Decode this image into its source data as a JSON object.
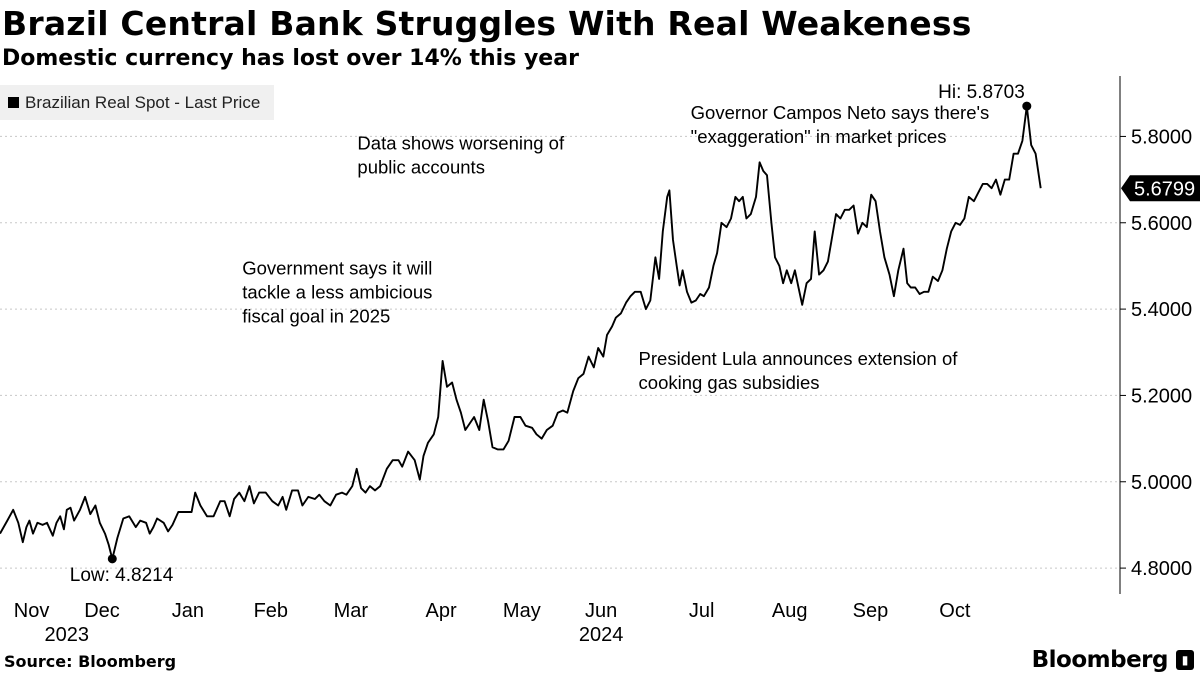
{
  "title": "Brazil Central Bank Struggles With Real Weakeness",
  "subtitle": "Domestic currency has lost over 14% this year",
  "legend_label": "Brazilian Real Spot - Last Price",
  "source": "Source: Bloomberg",
  "brand": "Bloomberg",
  "chart_data": {
    "type": "line",
    "series": [
      {
        "name": "Brazilian Real Spot - Last Price",
        "points": [
          [
            0.0,
            4.88
          ],
          [
            1.0,
            4.91
          ],
          [
            1.8,
            4.935
          ],
          [
            2.5,
            4.905
          ],
          [
            3.1,
            4.86
          ],
          [
            3.6,
            4.895
          ],
          [
            4.0,
            4.91
          ],
          [
            4.5,
            4.88
          ],
          [
            5.1,
            4.905
          ],
          [
            5.8,
            4.9
          ],
          [
            6.4,
            4.905
          ],
          [
            7.2,
            4.875
          ],
          [
            7.7,
            4.905
          ],
          [
            8.2,
            4.92
          ],
          [
            8.7,
            4.89
          ],
          [
            9.1,
            4.935
          ],
          [
            9.6,
            4.94
          ],
          [
            10.1,
            4.91
          ],
          [
            10.9,
            4.935
          ],
          [
            11.6,
            4.965
          ],
          [
            12.3,
            4.925
          ],
          [
            13.0,
            4.945
          ],
          [
            13.6,
            4.905
          ],
          [
            14.3,
            4.88
          ],
          [
            14.8,
            4.855
          ],
          [
            15.3,
            4.821
          ],
          [
            16.0,
            4.87
          ],
          [
            16.8,
            4.915
          ],
          [
            17.6,
            4.92
          ],
          [
            18.5,
            4.895
          ],
          [
            19.1,
            4.91
          ],
          [
            19.9,
            4.905
          ],
          [
            20.4,
            4.88
          ],
          [
            20.9,
            4.895
          ],
          [
            21.4,
            4.915
          ],
          [
            22.3,
            4.905
          ],
          [
            22.9,
            4.885
          ],
          [
            23.5,
            4.9
          ],
          [
            24.3,
            4.93
          ],
          [
            25.2,
            4.93
          ],
          [
            26.1,
            4.93
          ],
          [
            26.6,
            4.975
          ],
          [
            27.3,
            4.945
          ],
          [
            28.2,
            4.92
          ],
          [
            29.1,
            4.92
          ],
          [
            30.0,
            4.955
          ],
          [
            30.6,
            4.955
          ],
          [
            31.3,
            4.92
          ],
          [
            31.9,
            4.96
          ],
          [
            32.6,
            4.975
          ],
          [
            33.3,
            4.955
          ],
          [
            34.0,
            4.99
          ],
          [
            34.6,
            4.95
          ],
          [
            35.3,
            4.975
          ],
          [
            36.2,
            4.975
          ],
          [
            37.1,
            4.955
          ],
          [
            37.9,
            4.945
          ],
          [
            38.5,
            4.965
          ],
          [
            39.0,
            4.935
          ],
          [
            39.8,
            4.98
          ],
          [
            40.6,
            4.98
          ],
          [
            41.2,
            4.945
          ],
          [
            42.0,
            4.965
          ],
          [
            42.9,
            4.96
          ],
          [
            43.5,
            4.97
          ],
          [
            44.2,
            4.955
          ],
          [
            45.0,
            4.945
          ],
          [
            45.8,
            4.97
          ],
          [
            46.6,
            4.975
          ],
          [
            47.2,
            4.97
          ],
          [
            48.0,
            4.99
          ],
          [
            48.6,
            5.03
          ],
          [
            49.2,
            4.985
          ],
          [
            49.8,
            4.975
          ],
          [
            50.4,
            4.99
          ],
          [
            51.1,
            4.98
          ],
          [
            51.8,
            4.99
          ],
          [
            52.7,
            5.03
          ],
          [
            53.5,
            5.05
          ],
          [
            54.3,
            5.05
          ],
          [
            54.8,
            5.035
          ],
          [
            55.6,
            5.07
          ],
          [
            56.5,
            5.05
          ],
          [
            57.2,
            5.005
          ],
          [
            57.7,
            5.06
          ],
          [
            58.3,
            5.09
          ],
          [
            59.1,
            5.11
          ],
          [
            59.7,
            5.15
          ],
          [
            60.3,
            5.28
          ],
          [
            60.9,
            5.22
          ],
          [
            61.6,
            5.23
          ],
          [
            62.2,
            5.19
          ],
          [
            62.8,
            5.16
          ],
          [
            63.4,
            5.12
          ],
          [
            64.0,
            5.135
          ],
          [
            64.6,
            5.15
          ],
          [
            65.3,
            5.12
          ],
          [
            65.9,
            5.19
          ],
          [
            66.5,
            5.14
          ],
          [
            67.1,
            5.08
          ],
          [
            67.8,
            5.075
          ],
          [
            68.6,
            5.075
          ],
          [
            69.3,
            5.095
          ],
          [
            70.1,
            5.15
          ],
          [
            70.9,
            5.15
          ],
          [
            71.6,
            5.13
          ],
          [
            72.5,
            5.125
          ],
          [
            73.1,
            5.11
          ],
          [
            73.8,
            5.1
          ],
          [
            74.5,
            5.12
          ],
          [
            75.3,
            5.13
          ],
          [
            76.0,
            5.16
          ],
          [
            76.7,
            5.165
          ],
          [
            77.3,
            5.16
          ],
          [
            78.1,
            5.21
          ],
          [
            78.8,
            5.24
          ],
          [
            79.5,
            5.25
          ],
          [
            80.2,
            5.29
          ],
          [
            80.9,
            5.265
          ],
          [
            81.5,
            5.31
          ],
          [
            82.2,
            5.29
          ],
          [
            82.7,
            5.34
          ],
          [
            83.4,
            5.36
          ],
          [
            83.9,
            5.38
          ],
          [
            84.6,
            5.39
          ],
          [
            85.3,
            5.415
          ],
          [
            85.9,
            5.43
          ],
          [
            86.5,
            5.44
          ],
          [
            87.3,
            5.44
          ],
          [
            88.0,
            5.4
          ],
          [
            88.6,
            5.42
          ],
          [
            89.3,
            5.52
          ],
          [
            89.8,
            5.47
          ],
          [
            90.3,
            5.58
          ],
          [
            90.9,
            5.66
          ],
          [
            91.2,
            5.675
          ],
          [
            91.7,
            5.56
          ],
          [
            92.2,
            5.5
          ],
          [
            92.6,
            5.455
          ],
          [
            93.0,
            5.49
          ],
          [
            93.6,
            5.44
          ],
          [
            94.2,
            5.415
          ],
          [
            94.8,
            5.42
          ],
          [
            95.4,
            5.435
          ],
          [
            95.9,
            5.43
          ],
          [
            96.6,
            5.45
          ],
          [
            97.2,
            5.5
          ],
          [
            97.7,
            5.53
          ],
          [
            98.3,
            5.6
          ],
          [
            99.0,
            5.59
          ],
          [
            99.6,
            5.61
          ],
          [
            100.2,
            5.66
          ],
          [
            100.7,
            5.65
          ],
          [
            101.2,
            5.66
          ],
          [
            101.7,
            5.61
          ],
          [
            102.3,
            5.62
          ],
          [
            103.0,
            5.66
          ],
          [
            103.5,
            5.74
          ],
          [
            104.0,
            5.72
          ],
          [
            104.5,
            5.71
          ],
          [
            105.1,
            5.6
          ],
          [
            105.6,
            5.52
          ],
          [
            106.2,
            5.5
          ],
          [
            106.7,
            5.46
          ],
          [
            107.2,
            5.49
          ],
          [
            107.8,
            5.46
          ],
          [
            108.3,
            5.49
          ],
          [
            108.8,
            5.45
          ],
          [
            109.3,
            5.41
          ],
          [
            109.9,
            5.46
          ],
          [
            110.5,
            5.47
          ],
          [
            111.0,
            5.58
          ],
          [
            111.6,
            5.48
          ],
          [
            112.2,
            5.49
          ],
          [
            112.8,
            5.51
          ],
          [
            113.3,
            5.56
          ],
          [
            113.9,
            5.62
          ],
          [
            114.5,
            5.61
          ],
          [
            115.1,
            5.63
          ],
          [
            115.7,
            5.63
          ],
          [
            116.3,
            5.64
          ],
          [
            116.9,
            5.575
          ],
          [
            117.5,
            5.6
          ],
          [
            118.1,
            5.59
          ],
          [
            118.7,
            5.665
          ],
          [
            119.3,
            5.65
          ],
          [
            119.9,
            5.58
          ],
          [
            120.5,
            5.52
          ],
          [
            121.2,
            5.48
          ],
          [
            121.8,
            5.43
          ],
          [
            122.4,
            5.49
          ],
          [
            123.1,
            5.54
          ],
          [
            123.6,
            5.46
          ],
          [
            124.1,
            5.45
          ],
          [
            124.7,
            5.45
          ],
          [
            125.3,
            5.435
          ],
          [
            125.9,
            5.44
          ],
          [
            126.5,
            5.44
          ],
          [
            127.1,
            5.475
          ],
          [
            127.8,
            5.465
          ],
          [
            128.4,
            5.49
          ],
          [
            129.0,
            5.54
          ],
          [
            129.6,
            5.58
          ],
          [
            130.2,
            5.6
          ],
          [
            130.8,
            5.595
          ],
          [
            131.4,
            5.61
          ],
          [
            132.0,
            5.66
          ],
          [
            132.7,
            5.65
          ],
          [
            133.3,
            5.67
          ],
          [
            133.9,
            5.69
          ],
          [
            134.5,
            5.69
          ],
          [
            135.1,
            5.68
          ],
          [
            135.7,
            5.7
          ],
          [
            136.3,
            5.665
          ],
          [
            136.9,
            5.7
          ],
          [
            137.5,
            5.7
          ],
          [
            138.1,
            5.76
          ],
          [
            138.7,
            5.76
          ],
          [
            139.3,
            5.79
          ],
          [
            139.9,
            5.87
          ],
          [
            140.5,
            5.78
          ],
          [
            141.1,
            5.76
          ],
          [
            141.8,
            5.68
          ]
        ]
      }
    ],
    "xlabel_months": [
      "Nov",
      "Dec",
      "Jan",
      "Feb",
      "Mar",
      "Apr",
      "May",
      "Jun",
      "Jul",
      "Aug",
      "Sep",
      "Oct"
    ],
    "xlabel_month_positions": [
      4.3,
      13.9,
      25.6,
      36.9,
      47.8,
      60.1,
      71.1,
      81.9,
      95.6,
      107.6,
      118.6,
      130.1
    ],
    "xlabel_years": [
      {
        "label": "2023",
        "x": 9.1
      },
      {
        "label": "2024",
        "x": 81.9
      }
    ],
    "x_unit": "weeks since 2023-10-26 (approx.)",
    "xlim": [
      0,
      152.6
    ],
    "y_ticks": [
      "4.8000",
      "5.0000",
      "5.2000",
      "5.4000",
      "5.6000",
      "5.8000"
    ],
    "ylim": [
      4.74,
      5.94
    ],
    "last_value_label": "5.6799",
    "last_value": 5.6799,
    "high": {
      "label": "Hi: 5.8703",
      "x": 139.9,
      "y": 5.8703
    },
    "low": {
      "label": "Low: 4.8214",
      "x": 15.3,
      "y": 4.8214
    },
    "annotations": [
      {
        "lines": [
          "Government says it will",
          "tackle a less ambicious",
          "fiscal goal in 2025"
        ],
        "x": 33.0,
        "y": 5.48
      },
      {
        "lines": [
          "Data shows worsening of",
          "public accounts"
        ],
        "x": 48.7,
        "y": 5.77
      },
      {
        "lines": [
          "Governor Campos Neto says there's",
          "\"exaggeration\" in market prices"
        ],
        "x": 94.1,
        "y": 5.84
      },
      {
        "lines": [
          "President Lula announces extension of",
          "cooking gas subsidies"
        ],
        "x": 87.0,
        "y": 5.27
      }
    ]
  }
}
